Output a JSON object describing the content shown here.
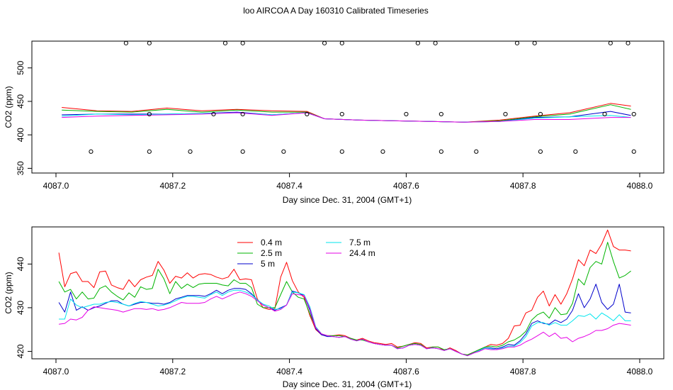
{
  "title": "loo AIRCOA A  Day 160310  Calibrated Timeseries",
  "colors": {
    "0.4 m": "#ff0000",
    "2.5 m": "#00b400",
    "5 m": "#0000cc",
    "7.5 m": "#00e5ee",
    "24.4 m": "#e600e6"
  },
  "chart_data": [
    {
      "type": "line",
      "title": "",
      "xlabel": "Day since Dec. 31, 2004 (GMT+1)",
      "ylabel": "CO2 (ppm)",
      "xlim": [
        4087.0,
        4088.0
      ],
      "ylim": [
        343,
        540
      ],
      "x_ticks": [
        "4087.0",
        "4087.2",
        "4087.4",
        "4087.6",
        "4087.8",
        "4088.0"
      ],
      "y_ticks": [
        "350",
        "400",
        "450",
        "500"
      ],
      "grid": false,
      "x": [
        4087.01,
        4087.07,
        4087.13,
        4087.19,
        4087.25,
        4087.31,
        4087.37,
        4087.43,
        4087.46,
        4087.52,
        4087.58,
        4087.64,
        4087.7,
        4087.76,
        4087.82,
        4087.88,
        4087.95,
        4087.985
      ],
      "series": [
        {
          "name": "0.4 m",
          "values": [
            441,
            436,
            435,
            440,
            436,
            438,
            436,
            435,
            424,
            422,
            421,
            420,
            419,
            422,
            428,
            433,
            447,
            443
          ]
        },
        {
          "name": "2.5 m",
          "values": [
            437,
            435,
            434,
            438,
            434,
            437,
            434,
            434,
            424,
            422,
            421,
            420,
            419,
            421,
            427,
            431,
            445,
            438
          ]
        },
        {
          "name": "5 m",
          "values": [
            430,
            431,
            431,
            431,
            432,
            434,
            430,
            433,
            424,
            422,
            421,
            420,
            419,
            420,
            426,
            427,
            435,
            429
          ]
        },
        {
          "name": "7.5 m",
          "values": [
            428,
            431,
            430,
            431,
            432,
            433,
            430,
            433,
            424,
            422,
            421,
            420,
            419,
            420,
            425,
            427,
            429,
            426
          ]
        },
        {
          "name": "24.4 m",
          "values": [
            426,
            428,
            429,
            430,
            431,
            433,
            429,
            433,
            424,
            422,
            421,
            420,
            419,
            420,
            423,
            423,
            426,
            426
          ]
        }
      ],
      "markers": {
        "symbol": "open-circle",
        "upper": {
          "y": 537,
          "x": [
            4087.12,
            4087.16,
            4087.29,
            4087.32,
            4087.46,
            4087.49,
            4087.62,
            4087.65,
            4087.79,
            4087.82,
            4087.95,
            4087.98
          ]
        },
        "middle": {
          "y": 431,
          "x": [
            4087.16,
            4087.27,
            4087.32,
            4087.43,
            4087.49,
            4087.6,
            4087.66,
            4087.77,
            4087.83,
            4087.94,
            4087.99
          ]
        },
        "lower": {
          "y": 375,
          "x": [
            4087.06,
            4087.16,
            4087.23,
            4087.32,
            4087.39,
            4087.49,
            4087.56,
            4087.66,
            4087.72,
            4087.83,
            4087.89,
            4087.99
          ]
        }
      }
    },
    {
      "type": "line",
      "title": "",
      "xlabel": "Day since Dec. 31, 2004 (GMT+1)",
      "ylabel": "CO2 (ppm)",
      "xlim": [
        4087.0,
        4088.0
      ],
      "ylim": [
        418.3,
        448.5
      ],
      "x_ticks": [
        "4087.0",
        "4087.2",
        "4087.4",
        "4087.6",
        "4087.8",
        "4088.0"
      ],
      "y_ticks": [
        "420",
        "430",
        "440"
      ],
      "grid": false,
      "legend": {
        "position": "top-left",
        "columns": 2,
        "entries": [
          "0.4 m",
          "2.5 m",
          "5 m",
          "7.5 m",
          "24.4 m"
        ]
      },
      "x": [
        4087.005,
        4087.015,
        4087.025,
        4087.035,
        4087.045,
        4087.055,
        4087.065,
        4087.075,
        4087.085,
        4087.095,
        4087.105,
        4087.115,
        4087.125,
        4087.135,
        4087.145,
        4087.155,
        4087.165,
        4087.175,
        4087.185,
        4087.195,
        4087.205,
        4087.215,
        4087.225,
        4087.235,
        4087.245,
        4087.255,
        4087.265,
        4087.275,
        4087.285,
        4087.295,
        4087.305,
        4087.315,
        4087.325,
        4087.335,
        4087.345,
        4087.355,
        4087.365,
        4087.375,
        4087.385,
        4087.395,
        4087.405,
        4087.415,
        4087.425,
        4087.435,
        4087.445,
        4087.455,
        4087.465,
        4087.475,
        4087.485,
        4087.495,
        4087.505,
        4087.515,
        4087.525,
        4087.535,
        4087.545,
        4087.555,
        4087.565,
        4087.575,
        4087.585,
        4087.595,
        4087.605,
        4087.615,
        4087.625,
        4087.635,
        4087.645,
        4087.655,
        4087.665,
        4087.675,
        4087.685,
        4087.695,
        4087.705,
        4087.715,
        4087.725,
        4087.735,
        4087.745,
        4087.755,
        4087.765,
        4087.775,
        4087.785,
        4087.795,
        4087.805,
        4087.815,
        4087.825,
        4087.835,
        4087.845,
        4087.855,
        4087.865,
        4087.875,
        4087.885,
        4087.895,
        4087.905,
        4087.915,
        4087.925,
        4087.935,
        4087.945,
        4087.955,
        4087.965,
        4087.975,
        4087.985
      ],
      "series": [
        {
          "name": "0.4 m",
          "values": [
            442.6,
            434.8,
            437.8,
            438.2,
            436.0,
            436.0,
            434.6,
            438.2,
            438.4,
            435.2,
            434.6,
            434.2,
            436.4,
            434.8,
            436.4,
            437.0,
            437.4,
            440.6,
            438.6,
            435.6,
            437.2,
            436.8,
            438.0,
            436.8,
            437.6,
            437.8,
            437.6,
            437.0,
            436.6,
            437.0,
            438.8,
            436.4,
            436.6,
            436.4,
            432.0,
            430.0,
            429.6,
            429.8,
            437.0,
            440.4,
            436.2,
            433.6,
            432.4,
            428.2,
            425.0,
            423.8,
            423.6,
            423.6,
            423.8,
            423.6,
            423.0,
            422.6,
            423.0,
            422.4,
            422.0,
            421.8,
            421.6,
            421.8,
            421.0,
            421.2,
            421.6,
            422.0,
            421.8,
            420.8,
            421.0,
            421.0,
            420.2,
            420.8,
            420.2,
            419.4,
            419.2,
            419.8,
            420.4,
            421.0,
            421.6,
            421.4,
            421.8,
            423.0,
            425.8,
            426.0,
            428.8,
            429.4,
            432.4,
            433.8,
            430.4,
            433.0,
            430.8,
            433.2,
            436.6,
            441.0,
            439.6,
            443.2,
            442.4,
            444.6,
            447.8,
            444.0,
            443.2,
            443.2,
            443.0
          ]
        },
        {
          "name": "2.5 m",
          "values": [
            436.0,
            433.6,
            434.2,
            432.0,
            433.6,
            432.0,
            432.2,
            434.4,
            435.0,
            433.6,
            432.6,
            431.8,
            433.4,
            432.4,
            434.8,
            434.2,
            434.4,
            438.8,
            436.6,
            433.2,
            436.0,
            434.4,
            435.4,
            434.6,
            435.4,
            435.6,
            435.6,
            435.6,
            435.2,
            435.0,
            436.4,
            435.6,
            435.6,
            434.6,
            430.8,
            430.0,
            430.0,
            430.0,
            433.0,
            436.0,
            433.6,
            432.4,
            432.0,
            428.6,
            425.6,
            424.0,
            423.6,
            423.6,
            423.6,
            423.4,
            423.0,
            422.6,
            422.6,
            422.2,
            421.8,
            421.6,
            421.4,
            421.4,
            420.8,
            421.2,
            421.6,
            421.8,
            421.6,
            420.6,
            421.0,
            421.0,
            420.4,
            420.6,
            420.0,
            419.4,
            419.2,
            419.8,
            420.4,
            421.0,
            421.2,
            421.0,
            421.4,
            422.2,
            422.6,
            423.4,
            424.6,
            427.2,
            428.4,
            429.0,
            427.6,
            430.0,
            428.4,
            428.6,
            431.0,
            436.6,
            435.2,
            439.2,
            440.6,
            440.0,
            445.0,
            440.6,
            436.8,
            437.4,
            438.4
          ]
        },
        {
          "name": "5 m",
          "values": [
            431.2,
            429.0,
            433.6,
            429.4,
            430.2,
            429.4,
            430.0,
            430.4,
            431.0,
            431.6,
            431.6,
            430.8,
            430.4,
            430.8,
            431.2,
            431.2,
            431.0,
            431.0,
            430.8,
            431.2,
            432.0,
            432.4,
            432.8,
            432.8,
            432.8,
            432.6,
            433.2,
            434.0,
            433.2,
            434.0,
            434.4,
            434.4,
            434.2,
            433.2,
            431.8,
            430.6,
            430.0,
            429.4,
            430.0,
            430.6,
            433.8,
            433.4,
            432.8,
            429.4,
            425.2,
            423.8,
            423.4,
            423.4,
            423.2,
            423.4,
            422.8,
            422.4,
            422.8,
            422.2,
            421.8,
            421.6,
            421.4,
            421.4,
            420.6,
            420.8,
            421.4,
            421.6,
            421.4,
            420.6,
            420.8,
            420.6,
            420.2,
            420.6,
            420.0,
            419.4,
            419.0,
            419.6,
            420.2,
            420.8,
            420.8,
            420.6,
            421.0,
            421.6,
            421.4,
            422.4,
            424.0,
            426.4,
            427.0,
            426.4,
            426.2,
            427.2,
            426.6,
            427.4,
            429.4,
            433.2,
            430.0,
            432.0,
            435.4,
            431.2,
            429.6,
            430.8,
            435.4,
            429.0,
            428.8
          ]
        },
        {
          "name": "7.5 m",
          "values": [
            427.4,
            427.4,
            432.0,
            430.6,
            430.0,
            430.4,
            430.8,
            430.8,
            431.2,
            431.4,
            431.2,
            430.8,
            430.4,
            431.0,
            431.4,
            431.2,
            430.8,
            430.4,
            430.6,
            431.0,
            431.6,
            432.2,
            432.6,
            432.6,
            432.4,
            432.2,
            433.0,
            433.6,
            432.8,
            433.6,
            434.0,
            434.0,
            433.6,
            433.0,
            431.8,
            430.8,
            430.4,
            429.6,
            429.8,
            430.6,
            433.6,
            433.4,
            433.0,
            430.2,
            425.6,
            424.0,
            423.6,
            423.4,
            423.2,
            423.4,
            422.8,
            422.4,
            422.8,
            422.2,
            421.8,
            421.6,
            421.4,
            421.4,
            420.6,
            420.8,
            421.4,
            421.6,
            421.4,
            420.6,
            420.8,
            420.6,
            420.2,
            420.6,
            420.0,
            419.4,
            419.0,
            419.6,
            420.2,
            420.8,
            420.6,
            420.4,
            420.8,
            421.2,
            421.2,
            422.0,
            423.4,
            425.8,
            426.6,
            426.6,
            426.0,
            426.6,
            426.0,
            426.0,
            427.0,
            428.2,
            428.0,
            428.6,
            427.4,
            428.8,
            428.0,
            427.0,
            428.4,
            427.0,
            427.0
          ]
        },
        {
          "name": "24.4 m",
          "values": [
            426.2,
            426.4,
            427.4,
            427.2,
            427.8,
            429.4,
            430.2,
            430.0,
            429.8,
            429.6,
            429.4,
            429.0,
            429.4,
            429.8,
            429.8,
            429.6,
            429.8,
            429.4,
            429.6,
            430.0,
            430.6,
            431.2,
            431.0,
            431.0,
            431.0,
            431.2,
            432.0,
            432.6,
            432.0,
            432.6,
            433.2,
            433.6,
            433.2,
            432.6,
            431.6,
            430.6,
            430.0,
            429.2,
            429.6,
            430.6,
            433.2,
            433.0,
            432.8,
            429.8,
            425.4,
            424.0,
            423.6,
            423.4,
            423.2,
            423.4,
            422.8,
            422.4,
            422.8,
            422.2,
            421.8,
            421.6,
            421.4,
            421.4,
            420.6,
            420.8,
            421.4,
            421.6,
            421.4,
            420.6,
            420.8,
            420.6,
            420.2,
            420.6,
            420.0,
            419.4,
            419.0,
            419.6,
            420.0,
            420.6,
            420.4,
            420.4,
            420.6,
            421.0,
            421.0,
            421.4,
            422.2,
            422.8,
            423.6,
            424.4,
            423.4,
            424.2,
            423.0,
            423.2,
            422.2,
            423.0,
            423.4,
            424.0,
            424.8,
            424.8,
            425.2,
            426.0,
            426.4,
            426.2,
            426.0
          ]
        }
      ]
    }
  ]
}
